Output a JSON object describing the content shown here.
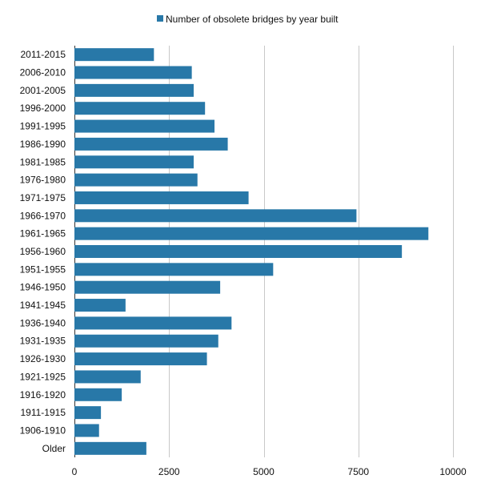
{
  "chart_data": {
    "type": "bar",
    "orientation": "horizontal",
    "title": "",
    "xlabel": "",
    "ylabel": "",
    "xlim": [
      0,
      10000
    ],
    "x_ticks": [
      0,
      2500,
      5000,
      7500,
      10000
    ],
    "grid": "vertical",
    "legend_position": "top",
    "categories": [
      "2011-2015",
      "2006-2010",
      "2001-2005",
      "1996-2000",
      "1991-1995",
      "1986-1990",
      "1981-1985",
      "1976-1980",
      "1971-1975",
      "1966-1970",
      "1961-1965",
      "1956-1960",
      "1951-1955",
      "1946-1950",
      "1941-1945",
      "1936-1940",
      "1931-1935",
      "1926-1930",
      "1921-1925",
      "1916-1920",
      "1911-1915",
      "1906-1910",
      "Older"
    ],
    "series": [
      {
        "name": "Number of obsolete bridges by year built",
        "color": "#2878a8",
        "values": [
          2100,
          3100,
          3150,
          3450,
          3700,
          4050,
          3150,
          3250,
          4600,
          7450,
          9350,
          8650,
          5250,
          3850,
          1350,
          4150,
          3800,
          3500,
          1750,
          1250,
          700,
          650,
          1900
        ]
      }
    ]
  }
}
